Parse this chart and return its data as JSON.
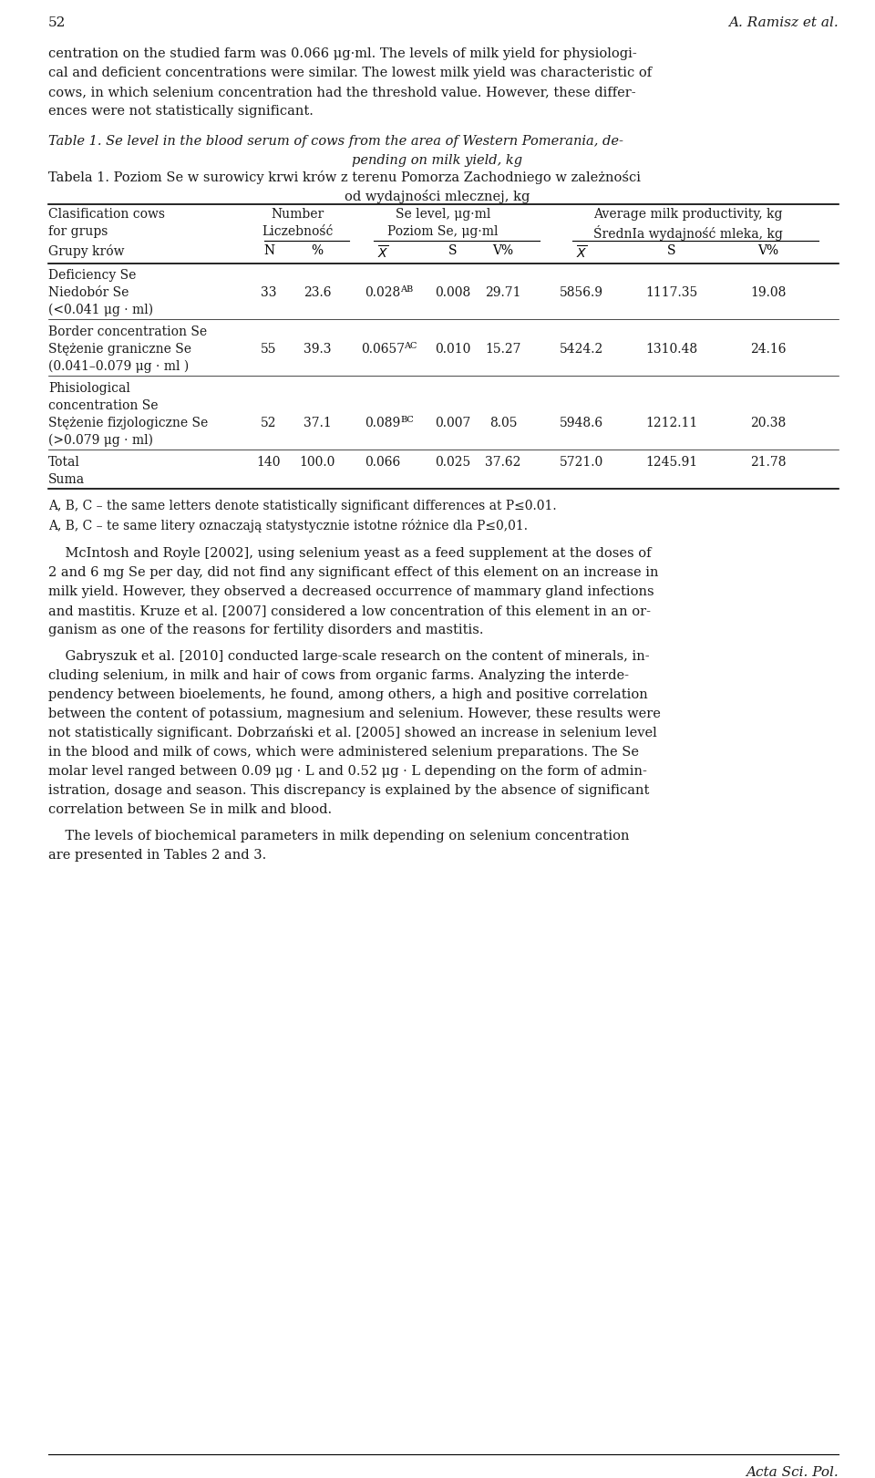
{
  "page_number": "52",
  "author": "A. Ramisz et al.",
  "intro_text": [
    "centration on the studied farm was 0.066 μg·ml. The levels of milk yield for physiologi-",
    "cal and deficient concentrations were similar. The lowest milk yield was characteristic of",
    "cows, in which selenium concentration had the threshold value. However, these differ-",
    "ences were not statistically significant."
  ],
  "table_title_en_1": "Table 1. Se level in the blood serum of cows from the area of Western Pomerania, de-",
  "table_title_en_2": "pending on milk yield, kg",
  "table_title_pl_1": "Tabela 1. Poziom Se w surowicy krwi krów z terenu Pomorza Zachodniego w zależności",
  "table_title_pl_2": "od wydajności mlecznej, kg",
  "footnote_en": "A, B, C – the same letters denote statistically significant differences at P≤0.01.",
  "footnote_pl": "A, B, C – te same litery oznaczają statystycznie istotne różnice dla P≤0,01.",
  "para2": [
    "    McIntosh and Royle [2002], using selenium yeast as a feed supplement at the doses of",
    "2 and 6 mg Se per day, did not find any significant effect of this element on an increase in",
    "milk yield. However, they observed a decreased occurrence of mammary gland infections",
    "and mastitis. Kruze et al. [2007] considered a low concentration of this element in an or-",
    "ganism as one of the reasons for fertility disorders and mastitis."
  ],
  "para3": [
    "    Gabryszuk et al. [2010] conducted large-scale research on the content of minerals, in-",
    "cluding selenium, in milk and hair of cows from organic farms. Analyzing the interde-",
    "pendency between bioelements, he found, among others, a high and positive correlation",
    "between the content of potassium, magnesium and selenium. However, these results were",
    "not statistically significant. Dobrzański et al. [2005] showed an increase in selenium level",
    "in the blood and milk of cows, which were administered selenium preparations. The Se",
    "molar level ranged between 0.09 μg · L and 0.52 μg · L depending on the form of admin-",
    "istration, dosage and season. This discrepancy is explained by the absence of significant",
    "correlation between Se in milk and blood."
  ],
  "para4": [
    "    The levels of biochemical parameters in milk depending on selenium concentration",
    "are presented in Tables 2 and 3."
  ],
  "footer": "Acta Sci. Pol.",
  "bg_color": "#ffffff"
}
